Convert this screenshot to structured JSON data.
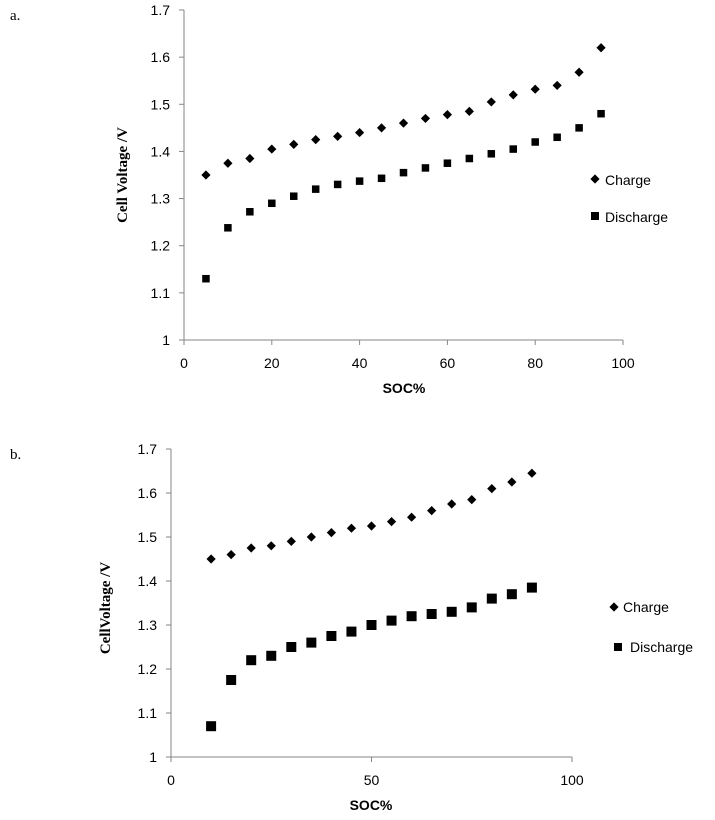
{
  "chart_data": [
    {
      "panel": "a.",
      "type": "scatter",
      "xlabel": "SOC%",
      "ylabel": "Cell Voltage /V",
      "xlim": [
        0,
        100
      ],
      "ylim": [
        1,
        1.7
      ],
      "xticks": [
        "0",
        "20",
        "40",
        "60",
        "80",
        "100"
      ],
      "yticks": [
        "1",
        "1.1",
        "1.2",
        "1.3",
        "1.4",
        "1.5",
        "1.6",
        "1.7"
      ],
      "legend_position": "right",
      "series": [
        {
          "name": "Charge",
          "marker": "diamond",
          "color": "#000000",
          "x": [
            5,
            10,
            15,
            20,
            25,
            30,
            35,
            40,
            45,
            50,
            55,
            60,
            65,
            70,
            75,
            80,
            85,
            90,
            95
          ],
          "y": [
            1.35,
            1.375,
            1.385,
            1.405,
            1.415,
            1.425,
            1.432,
            1.44,
            1.45,
            1.46,
            1.47,
            1.478,
            1.485,
            1.505,
            1.52,
            1.532,
            1.54,
            1.568,
            1.62
          ]
        },
        {
          "name": "Discharge",
          "marker": "square",
          "color": "#000000",
          "x": [
            5,
            10,
            15,
            20,
            25,
            30,
            35,
            40,
            45,
            50,
            55,
            60,
            65,
            70,
            75,
            80,
            85,
            90,
            95
          ],
          "y": [
            1.13,
            1.238,
            1.272,
            1.29,
            1.305,
            1.32,
            1.33,
            1.337,
            1.343,
            1.355,
            1.365,
            1.375,
            1.385,
            1.395,
            1.405,
            1.42,
            1.43,
            1.45,
            1.48
          ]
        }
      ]
    },
    {
      "panel": "b.",
      "type": "scatter",
      "xlabel": "SOC%",
      "ylabel": "CellVoltage /V",
      "xlim": [
        0,
        100
      ],
      "ylim": [
        1,
        1.7
      ],
      "xticks": [
        "0",
        "50",
        "100"
      ],
      "yticks": [
        "1",
        "1.1",
        "1.2",
        "1.3",
        "1.4",
        "1.5",
        "1.6",
        "1.7"
      ],
      "legend_position": "right",
      "series": [
        {
          "name": "Charge",
          "marker": "diamond",
          "color": "#000000",
          "x": [
            10,
            15,
            20,
            25,
            30,
            35,
            40,
            45,
            50,
            55,
            60,
            65,
            70,
            75,
            80,
            85,
            90
          ],
          "y": [
            1.45,
            1.46,
            1.475,
            1.48,
            1.49,
            1.5,
            1.51,
            1.52,
            1.525,
            1.535,
            1.545,
            1.56,
            1.575,
            1.585,
            1.61,
            1.625,
            1.645
          ]
        },
        {
          "name": "Discharge",
          "marker": "square",
          "color": "#000000",
          "x": [
            10,
            15,
            20,
            25,
            30,
            35,
            40,
            45,
            50,
            55,
            60,
            65,
            70,
            75,
            80,
            85,
            90
          ],
          "y": [
            1.07,
            1.175,
            1.22,
            1.23,
            1.25,
            1.26,
            1.275,
            1.285,
            1.3,
            1.31,
            1.32,
            1.325,
            1.33,
            1.34,
            1.36,
            1.37,
            1.385
          ]
        }
      ]
    }
  ]
}
